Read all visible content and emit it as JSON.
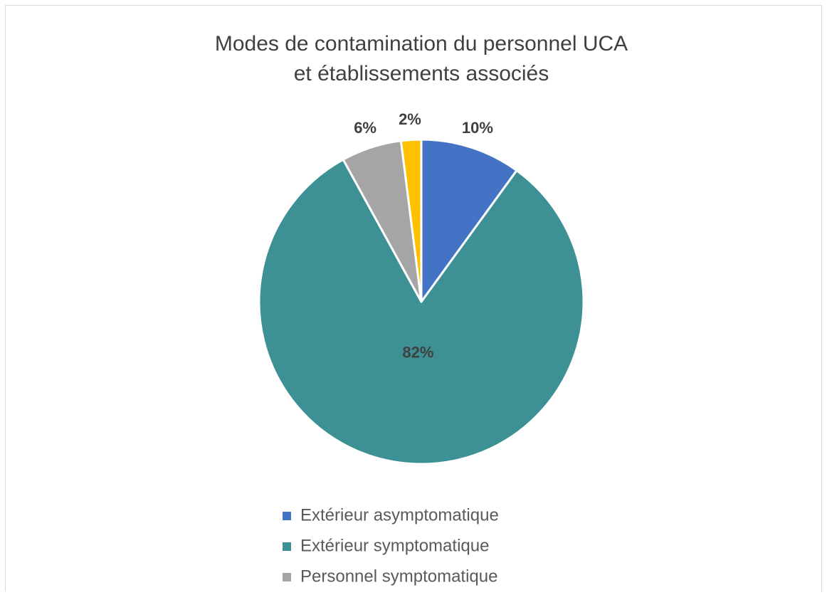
{
  "chart_data": {
    "type": "pie",
    "title": [
      "Modes de contamination du personnel UCA",
      "et établissements associés"
    ],
    "categories": [
      "Extérieur asymptomatique",
      "Extérieur symptomatique",
      "Personnel symptomatique",
      null
    ],
    "values": [
      10,
      82,
      6,
      2
    ],
    "value_labels": [
      "10%",
      "82%",
      "6%",
      "2%"
    ],
    "colors": [
      "#4472c4",
      "#3d9194",
      "#a5a5a5",
      "#ffc000"
    ],
    "legend": "bottom"
  }
}
